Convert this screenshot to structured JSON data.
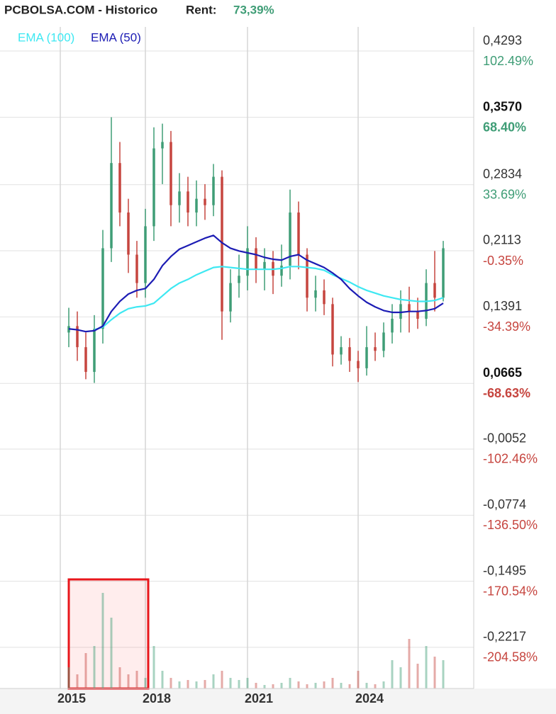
{
  "chart_data": {
    "type": "candlestick",
    "title": "PCBOLSA.COM - Historico",
    "return_label": "Rent:",
    "return_value": "73,39%",
    "up_color": "#3f9d76",
    "down_color": "#c6453f",
    "categories": [
      "2015",
      null,
      null,
      null,
      null,
      null,
      null,
      null,
      null,
      null,
      "2018",
      null,
      null,
      null,
      null,
      null,
      null,
      null,
      null,
      null,
      null,
      null,
      "2021",
      null,
      null,
      null,
      null,
      null,
      null,
      null,
      null,
      null,
      null,
      null,
      null,
      "2024",
      null,
      null,
      null,
      null,
      null,
      null,
      null,
      null,
      null,
      null
    ],
    "open": [
      null,
      0.122,
      0.129,
      0.106,
      0.079,
      0.126,
      0.214,
      0.307,
      0.253,
      0.207,
      0.176,
      0.238,
      0.323,
      0.33,
      0.261,
      0.276,
      0.253,
      0.268,
      0.261,
      0.292,
      0.145,
      0.176,
      0.184,
      0.214,
      0.191,
      0.199,
      0.184,
      0.195,
      0.253,
      0.207,
      0.16,
      0.168,
      0.153,
      0.098,
      0.106,
      0.091,
      0.083,
      0.106,
      0.102,
      0.122,
      0.137,
      0.153,
      0.145,
      0.137,
      0.176,
      0.16
    ],
    "high": [
      null,
      0.149,
      0.145,
      0.122,
      0.141,
      0.234,
      0.357,
      0.33,
      0.268,
      0.222,
      0.257,
      0.346,
      0.35,
      0.342,
      0.296,
      0.292,
      0.288,
      0.284,
      0.306,
      0.299,
      0.191,
      0.207,
      0.238,
      0.226,
      0.214,
      0.211,
      0.218,
      0.278,
      0.265,
      0.214,
      0.184,
      0.18,
      0.16,
      0.118,
      0.116,
      0.102,
      0.129,
      0.122,
      0.133,
      0.153,
      0.168,
      0.172,
      0.16,
      0.191,
      0.211,
      0.222
    ],
    "low": [
      null,
      0.106,
      0.091,
      0.071,
      0.067,
      0.11,
      0.199,
      0.238,
      0.187,
      0.16,
      0.16,
      0.222,
      0.284,
      0.238,
      0.242,
      0.238,
      0.238,
      0.245,
      0.249,
      0.114,
      0.133,
      0.16,
      0.168,
      0.176,
      0.168,
      0.164,
      0.172,
      0.18,
      0.191,
      0.145,
      0.145,
      0.141,
      0.085,
      0.087,
      0.079,
      0.068,
      0.075,
      0.091,
      0.095,
      0.11,
      0.122,
      0.122,
      0.126,
      0.129,
      0.145,
      0.156
    ],
    "close": [
      null,
      0.129,
      0.106,
      0.079,
      0.126,
      0.214,
      0.307,
      0.253,
      0.207,
      0.176,
      0.238,
      0.323,
      0.33,
      0.261,
      0.276,
      0.253,
      0.268,
      0.261,
      0.292,
      0.145,
      0.176,
      0.184,
      0.214,
      0.191,
      0.199,
      0.184,
      0.195,
      0.253,
      0.207,
      0.16,
      0.168,
      0.153,
      0.098,
      0.106,
      0.091,
      0.083,
      0.106,
      0.102,
      0.122,
      0.137,
      0.153,
      0.145,
      0.137,
      0.176,
      0.16,
      0.214
    ],
    "volume": [
      null,
      30,
      20,
      50,
      60,
      135,
      100,
      30,
      20,
      25,
      15,
      60,
      25,
      15,
      10,
      12,
      10,
      12,
      20,
      25,
      15,
      12,
      15,
      8,
      5,
      6,
      8,
      15,
      10,
      6,
      8,
      10,
      15,
      8,
      6,
      25,
      8,
      6,
      10,
      40,
      30,
      70,
      35,
      60,
      45,
      40
    ],
    "series": [
      {
        "name": "EMA (100)",
        "color": "#3ee8f2",
        "values": [
          null,
          null,
          null,
          null,
          0.125,
          0.128,
          0.136,
          0.143,
          0.148,
          0.15,
          0.151,
          0.154,
          0.162,
          0.17,
          0.176,
          0.18,
          0.185,
          0.189,
          0.193,
          0.194,
          0.193,
          0.192,
          0.191,
          0.191,
          0.191,
          0.191,
          0.192,
          0.194,
          0.194,
          0.193,
          0.192,
          0.19,
          0.185,
          0.181,
          0.177,
          0.172,
          0.168,
          0.165,
          0.162,
          0.16,
          0.158,
          0.157,
          0.156,
          0.156,
          0.157,
          0.16
        ]
      },
      {
        "name": "EMA (50)",
        "color": "#1c1cb4",
        "values": [
          null,
          0.126,
          0.125,
          0.123,
          0.124,
          0.129,
          0.145,
          0.156,
          0.164,
          0.168,
          0.17,
          0.18,
          0.195,
          0.205,
          0.213,
          0.217,
          0.221,
          0.225,
          0.228,
          0.22,
          0.214,
          0.211,
          0.209,
          0.207,
          0.204,
          0.202,
          0.201,
          0.205,
          0.207,
          0.201,
          0.197,
          0.193,
          0.187,
          0.18,
          0.17,
          0.162,
          0.155,
          0.15,
          0.146,
          0.144,
          0.144,
          0.145,
          0.145,
          0.146,
          0.148,
          0.154
        ]
      }
    ],
    "ylim": [
      -0.2666,
      0.4556
    ],
    "yticks": [
      {
        "value": 0.4293,
        "label": "0,4293"
      },
      {
        "value": 0.357,
        "label": "0,3570",
        "bold": true
      },
      {
        "value": 0.2834,
        "label": "0,2834"
      },
      {
        "value": 0.2113,
        "label": "0,2113"
      },
      {
        "value": 0.1391,
        "label": "0,1391"
      },
      {
        "value": 0.0665,
        "label": "0,0665",
        "bold": true
      },
      {
        "value": -0.0052,
        "label": "-0,0052"
      },
      {
        "value": -0.0774,
        "label": "-0,0774"
      },
      {
        "value": -0.1495,
        "label": "-0,1495"
      },
      {
        "value": -0.2217,
        "label": "-0,2217"
      }
    ],
    "y2lim": [
      -225.75,
      114.91
    ],
    "y2ticks": [
      {
        "value": 102.49,
        "label": "102.49%"
      },
      {
        "value": 68.4,
        "label": "68.40%",
        "bold": true
      },
      {
        "value": 33.69,
        "label": "33.69%"
      },
      {
        "value": -0.35,
        "label": "-0.35%"
      },
      {
        "value": -34.39,
        "label": "-34.39%"
      },
      {
        "value": -68.63,
        "label": "-68.63%",
        "bold": true
      },
      {
        "value": -102.46,
        "label": "-102.46%"
      },
      {
        "value": -136.5,
        "label": "-136.50%"
      },
      {
        "value": -170.54,
        "label": "-170.54%"
      },
      {
        "value": -204.58,
        "label": "-204.58%"
      }
    ],
    "grid": true
  }
}
